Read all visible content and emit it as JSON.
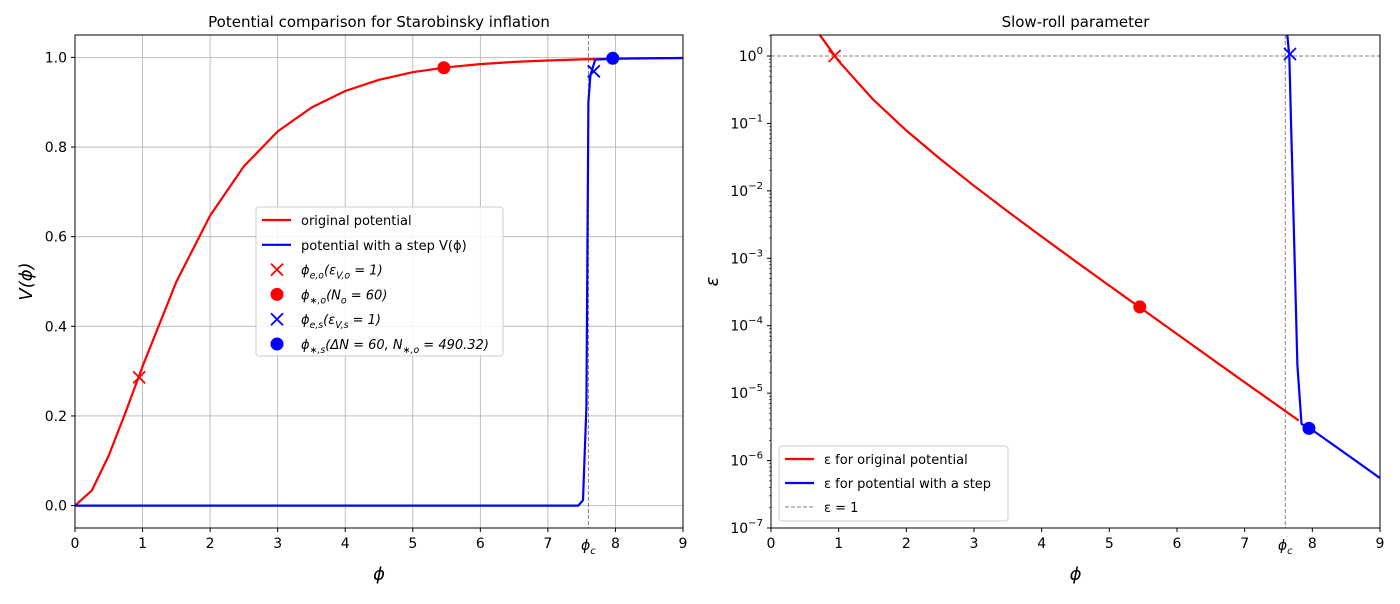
{
  "chart_data": [
    {
      "type": "line",
      "title": "Potential comparison for Starobinsky inflation",
      "xlabel": "ϕ",
      "ylabel": "V(ϕ)",
      "xlim": [
        0,
        9
      ],
      "ylim": [
        -0.05,
        1.05
      ],
      "yscale": "linear",
      "grid": true,
      "legend_position": "center",
      "xticks": [
        0,
        1,
        2,
        3,
        4,
        5,
        6,
        7,
        8,
        9
      ],
      "xticklabels": [
        "0",
        "1",
        "2",
        "3",
        "4",
        "5",
        "6",
        "7",
        "8",
        "9"
      ],
      "yticks": [
        0,
        0.2,
        0.4,
        0.6,
        0.8,
        1.0
      ],
      "yticklabels": [
        "0.0",
        "0.2",
        "0.4",
        "0.6",
        "0.8",
        "1.0"
      ],
      "vline": {
        "x": 7.6,
        "label": "ϕ_{c}",
        "color": "#808080"
      },
      "series": [
        {
          "name": "original potential",
          "color": "#ff0000",
          "x": [
            0,
            0.25,
            0.5,
            0.75,
            1,
            1.5,
            2,
            2.5,
            3,
            3.5,
            4,
            4.5,
            5,
            5.5,
            6,
            6.5,
            7,
            7.5,
            8,
            8.5,
            9
          ],
          "y": [
            0,
            0.034,
            0.112,
            0.209,
            0.311,
            0.499,
            0.647,
            0.757,
            0.835,
            0.888,
            0.925,
            0.95,
            0.967,
            0.978,
            0.985,
            0.99,
            0.993,
            0.9956,
            0.9971,
            0.9981,
            0.9987
          ]
        },
        {
          "name": "potential with a step V(ϕ)",
          "color": "#0000ff",
          "x": [
            0,
            7.45,
            7.52,
            7.57,
            7.6,
            7.63,
            7.7,
            8,
            8.5,
            9
          ],
          "y": [
            0,
            0,
            0.012,
            0.22,
            0.9,
            0.96,
            0.995,
            0.9971,
            0.9981,
            0.9987
          ]
        }
      ],
      "markers": [
        {
          "name": "ϕ_{e,o}(ε_{V,o} = 1)",
          "symbol": "x",
          "color": "#ff0000",
          "x": 0.95,
          "y": 0.286
        },
        {
          "name": "ϕ_{∗,o}(N_{o} = 60)",
          "symbol": "o",
          "color": "#ff0000",
          "x": 5.46,
          "y": 0.977
        },
        {
          "name": "ϕ_{e,s}(ε_{V,s} = 1)",
          "symbol": "x",
          "color": "#0000ff",
          "x": 7.68,
          "y": 0.969
        },
        {
          "name": "ϕ_{∗,s}(ΔN = 60, N_{∗,o} = 490.32)",
          "symbol": "o",
          "color": "#0000ff",
          "x": 7.96,
          "y": 0.998
        }
      ]
    },
    {
      "type": "line",
      "title": "Slow-roll parameter",
      "xlabel": "ϕ",
      "ylabel": "ε",
      "xlim": [
        0,
        9
      ],
      "ylim": [
        1e-07,
        2.05
      ],
      "yscale": "log",
      "grid": false,
      "legend_position": "lower-left",
      "xticks": [
        0,
        1,
        2,
        3,
        4,
        5,
        6,
        7,
        8,
        9
      ],
      "xticklabels": [
        "0",
        "1",
        "2",
        "3",
        "4",
        "5",
        "6",
        "7",
        "8",
        "9"
      ],
      "yticks": [
        1e-07,
        1e-06,
        1e-05,
        0.0001,
        0.001,
        0.01,
        0.1,
        1
      ],
      "yticklabels": [
        "10^{−7}",
        "10^{−6}",
        "10^{−5}",
        "10^{−4}",
        "10^{−3}",
        "10^{−2}",
        "10^{−1}",
        "10^{0}"
      ],
      "vline": {
        "x": 7.6,
        "label": "ϕ_{c}",
        "color": "#808080"
      },
      "hline": {
        "y": 1,
        "color": "#808080"
      },
      "series": [
        {
          "name": "ε for original potential",
          "color": "#ff0000",
          "x": [
            0.72,
            0.75,
            1,
            1.5,
            2,
            2.5,
            3,
            3.5,
            4,
            4.5,
            5,
            5.5,
            6,
            6.5,
            7,
            7.5,
            7.8
          ],
          "y": [
            2.05,
            1.87,
            0.837,
            0.231,
            0.0786,
            0.0297,
            0.0119,
            0.00495,
            0.0021,
            0.000904,
            0.000394,
            0.000172,
            7.54e-05,
            3.3e-05,
            1.45e-05,
            6.41e-06,
            3.92e-06
          ]
        },
        {
          "name": "ε for potential with a step",
          "color": "#0000ff",
          "x": [
            7.63,
            7.66,
            7.78,
            7.84,
            8,
            8.5,
            9
          ],
          "y": [
            2.05,
            1.0,
            2.6e-05,
            3.5e-06,
            2.84e-06,
            1.25e-06,
            5.5e-07
          ]
        },
        {
          "name": "ε = 1",
          "color": "#808080",
          "dashed": true,
          "x": [
            0,
            9
          ],
          "y": [
            1,
            1
          ]
        }
      ],
      "markers": [
        {
          "symbol": "x",
          "color": "#ff0000",
          "x": 0.94,
          "y": 1.0
        },
        {
          "symbol": "o",
          "color": "#ff0000",
          "x": 5.45,
          "y": 0.00019
        },
        {
          "symbol": "x",
          "color": "#0000ff",
          "x": 7.67,
          "y": 1.07
        },
        {
          "symbol": "o",
          "color": "#0000ff",
          "x": 7.95,
          "y": 3e-06
        }
      ]
    }
  ]
}
